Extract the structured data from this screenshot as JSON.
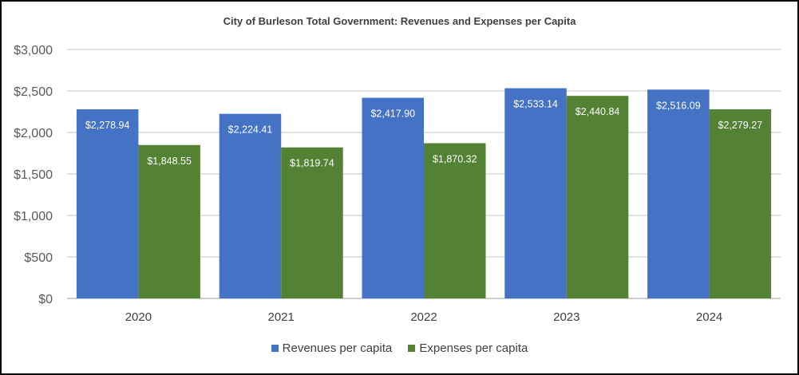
{
  "chart_data": {
    "type": "bar",
    "title": "City of Burleson Total Government: Revenues and Expenses per Capita",
    "categories": [
      "2020",
      "2021",
      "2022",
      "2023",
      "2024"
    ],
    "series": [
      {
        "name": "Revenues per capita",
        "color": "#4472C4",
        "values": [
          2278.94,
          2224.41,
          2417.9,
          2533.14,
          2516.09
        ],
        "labels": [
          "$2,278.94",
          "$2,224.41",
          "$2,417.90",
          "$2,533.14",
          "$2,516.09"
        ]
      },
      {
        "name": "Expenses per capita",
        "color": "#548235",
        "values": [
          1848.55,
          1819.74,
          1870.32,
          2440.84,
          2279.27
        ],
        "labels": [
          "$1,848.55",
          "$1,819.74",
          "$1,870.32",
          "$2,440.84",
          "$2,279.27"
        ]
      }
    ],
    "ylim": [
      0,
      3000
    ],
    "yticks": [
      0,
      500,
      1000,
      1500,
      2000,
      2500,
      3000
    ],
    "ytick_labels": [
      "$0",
      "$500",
      "$1,000",
      "$1,500",
      "$2,000",
      "$2,500",
      "$3,000"
    ],
    "grid": true,
    "legend": "bottom"
  }
}
